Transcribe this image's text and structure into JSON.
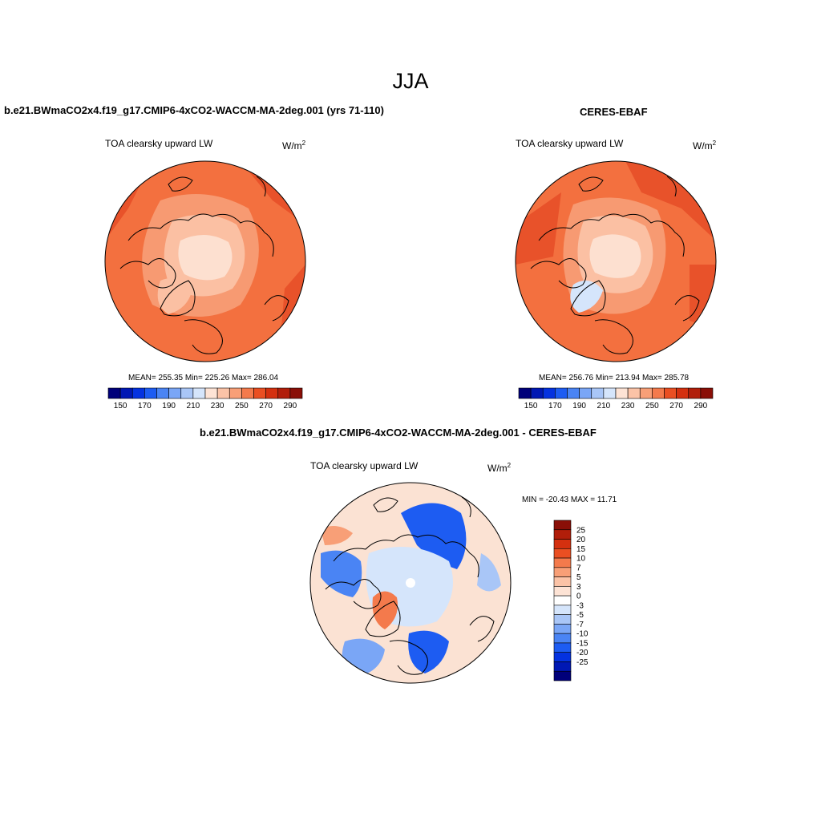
{
  "title": "JJA",
  "panels": [
    {
      "title": "b.e21.BWmaCO2x4.f19_g17.CMIP6-4xCO2-WACCM-MA-2deg.001 (yrs 71-110)",
      "variable": "TOA clearsky upward LW",
      "units": "W/m",
      "units_exp": "2",
      "stats_text": "MEAN= 255.35  Min= 225.26  Max= 286.04",
      "stats": {
        "mean": 255.35,
        "min": 225.26,
        "max": 286.04
      }
    },
    {
      "title": "CERES-EBAF",
      "variable": "TOA clearsky upward LW",
      "units": "W/m",
      "units_exp": "2",
      "stats_text": "MEAN= 256.76  Min= 213.94  Max= 285.78",
      "stats": {
        "mean": 256.76,
        "min": 213.94,
        "max": 285.78
      }
    },
    {
      "title": "b.e21.BWmaCO2x4.f19_g17.CMIP6-4xCO2-WACCM-MA-2deg.001 - CERES-EBAF",
      "variable": "TOA clearsky upward LW",
      "units": "W/m",
      "units_exp": "2",
      "stats_text": "MIN = -20.43 MAX =  11.71",
      "stats": {
        "min": -20.43,
        "max": 11.71
      }
    }
  ],
  "abs_colorbar": {
    "levels": [
      150,
      160,
      170,
      180,
      190,
      200,
      210,
      220,
      230,
      240,
      250,
      260,
      270,
      280,
      290
    ],
    "tick_labels": [
      "150",
      "170",
      "190",
      "210",
      "230",
      "250",
      "270",
      "290"
    ],
    "colors": [
      "#00007a",
      "#0018b4",
      "#0432e0",
      "#1d5cf2",
      "#4a84f4",
      "#7aa6f6",
      "#a9c6f7",
      "#d5e5fb",
      "#fde3d5",
      "#fbc3a7",
      "#f89f77",
      "#f47a4c",
      "#ea4f22",
      "#d4300f",
      "#b11e0a",
      "#8a0f07"
    ]
  },
  "diff_colorbar": {
    "levels": [
      25,
      20,
      15,
      10,
      7,
      5,
      3,
      0,
      -3,
      -5,
      -7,
      -10,
      -15,
      -20,
      -25
    ],
    "tick_labels": [
      "25",
      "20",
      "15",
      "10",
      "7",
      "5",
      "3",
      "0",
      "-3",
      "-5",
      "-7",
      "-10",
      "-15",
      "-20",
      "-25"
    ],
    "colors_top_to_bottom": [
      "#8a0f07",
      "#b11e0a",
      "#d4300f",
      "#ea4f22",
      "#f47a4c",
      "#f89f77",
      "#fbc3a7",
      "#fde3d5",
      "#ffffff",
      "#d5e5fb",
      "#a9c6f7",
      "#7aa6f6",
      "#4a84f4",
      "#1d5cf2",
      "#0432e0",
      "#0018b4",
      "#00007a"
    ]
  },
  "map_colors": {
    "field_orange": "#f3703f",
    "field_dark": "#e8522a",
    "field_light": "#f79a72",
    "field_pale": "#fbc0a3",
    "field_paler": "#fde0d0",
    "diff_pale": "#fbe2d3",
    "diff_blue": "#1d5cf2",
    "diff_lightblue": "#a9c6f7",
    "coast": "#000000"
  }
}
